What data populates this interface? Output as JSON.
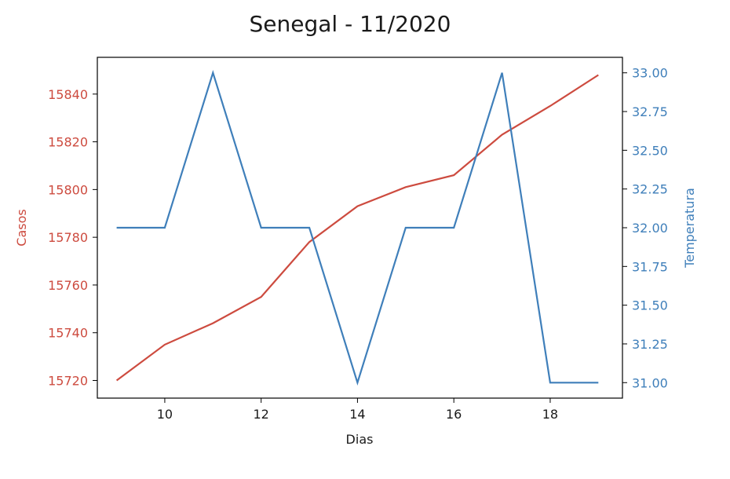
{
  "chart_data": {
    "type": "line",
    "title": "Senegal - 11/2020",
    "xlabel": "Dias",
    "ylabel_left": "Casos",
    "ylabel_right": "Temperatura",
    "xlim": [
      8.6,
      19.5
    ],
    "ylim_left": [
      15712.6,
      15855.4
    ],
    "ylim_right": [
      30.9,
      33.1
    ],
    "x_ticks": [
      10,
      12,
      14,
      16,
      18
    ],
    "y_left_ticks": [
      15720,
      15740,
      15760,
      15780,
      15800,
      15820,
      15840
    ],
    "y_right_ticks": [
      "31.00",
      "31.25",
      "31.50",
      "31.75",
      "32.00",
      "32.25",
      "32.50",
      "32.75",
      "33.00"
    ],
    "grid": false,
    "legend": "none",
    "colors": {
      "casos": "#cd4b3f",
      "temperatura": "#3f7fba",
      "axis": "#000000"
    },
    "x": [
      9,
      10,
      11,
      12,
      13,
      14,
      15,
      16,
      17,
      18,
      19
    ],
    "series": [
      {
        "name": "Casos",
        "axis": "left",
        "values": [
          15720,
          15735,
          15744,
          15755,
          15778,
          15793,
          15801,
          15806,
          15823,
          15835,
          15848
        ]
      },
      {
        "name": "Temperatura",
        "axis": "right",
        "values": [
          32.0,
          32.0,
          33.0,
          32.0,
          32.0,
          31.0,
          32.0,
          32.0,
          33.0,
          31.0,
          31.0
        ]
      }
    ]
  }
}
